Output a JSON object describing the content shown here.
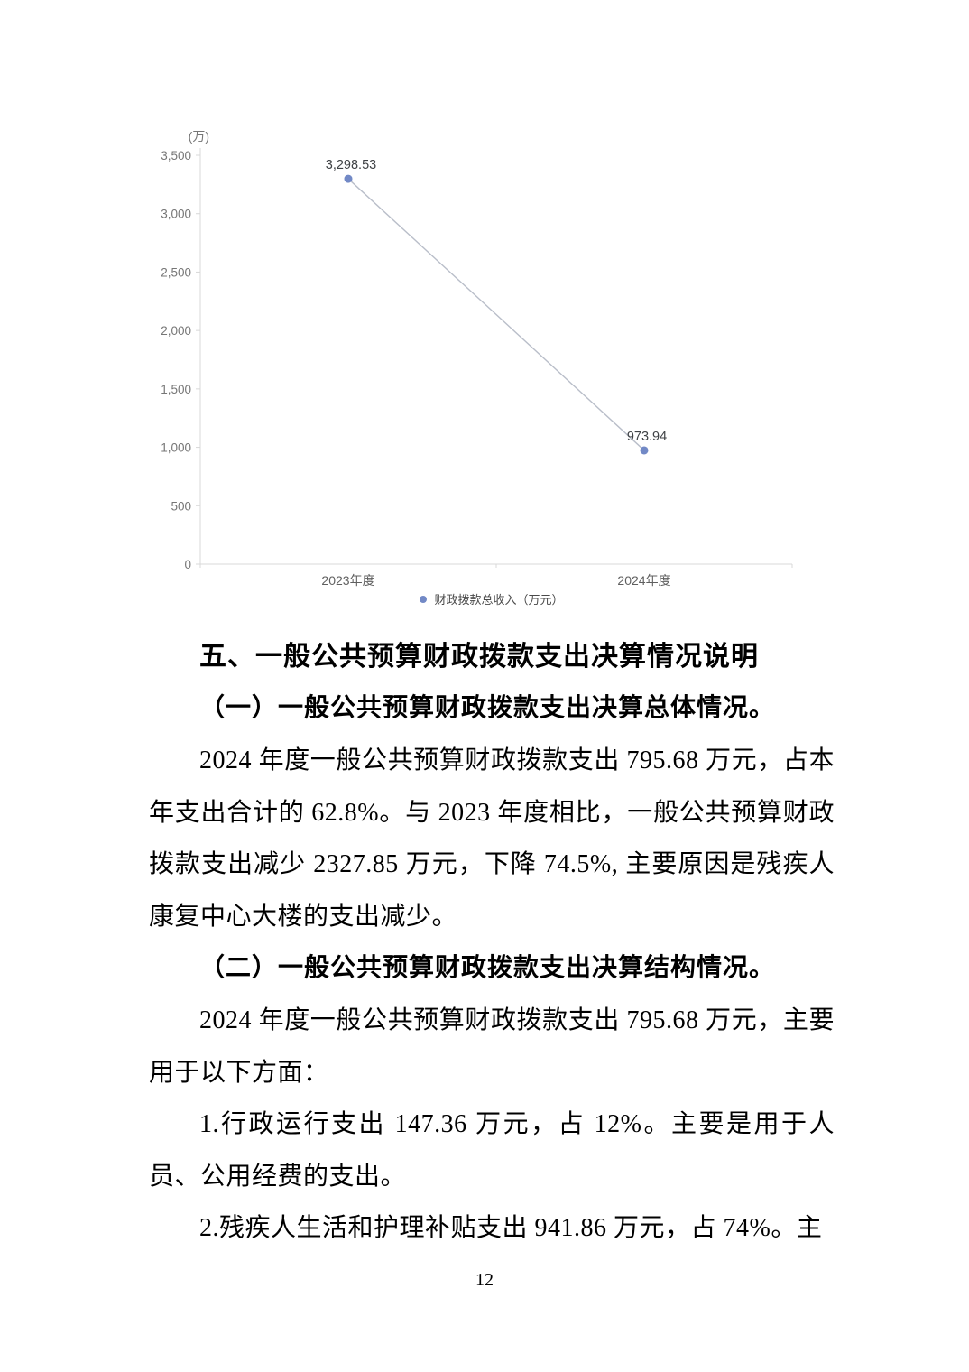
{
  "chart_data": {
    "type": "line",
    "series_name": "财政拨款总收入（万元）",
    "categories": [
      "2023年度",
      "2024年度"
    ],
    "values": [
      3298.53,
      973.94
    ],
    "data_labels": [
      "3,298.53",
      "973.94"
    ],
    "unit_label": "(万)",
    "title": "",
    "xlabel": "",
    "ylabel": "(万)",
    "ylim": [
      0,
      3500
    ],
    "yticks": [
      0,
      500,
      1000,
      1500,
      2000,
      2500,
      3000,
      3500
    ],
    "ytick_labels": [
      "0",
      "500",
      "1,000",
      "1,500",
      "2,000",
      "2,500",
      "3,000",
      "3,500"
    ],
    "grid": false,
    "legend_position": "bottom",
    "colors": {
      "marker": "#7289c6",
      "line": "#b9bec9",
      "axis": "#d8d8d8",
      "tick_label": "#767676",
      "category_label": "#5f5f5f",
      "data_label": "#3f4245",
      "legend_text": "#4a4a4a"
    }
  },
  "document": {
    "heading": "五、一般公共预算财政拨款支出决算情况说明",
    "paragraphs": [
      {
        "text": "（一）一般公共预算财政拨款支出决算总体情况。"
      },
      {
        "text": "2024 年度一般公共预算财政拨款支出 795.68 万元，占本年支出合计的 62.8%。与 2023 年度相比，一般公共预算财政拨款支出减少 2327.85 万元，下降 74.5%, 主要原因是残疾人康复中心大楼的支出减少。"
      },
      {
        "text": "（二）一般公共预算财政拨款支出决算结构情况。"
      },
      {
        "text": "2024 年度一般公共预算财政拨款支出 795.68 万元，主要用于以下方面："
      },
      {
        "text": "1.行政运行支出 147.36 万元，占 12%。主要是用于人员、公用经费的支出。"
      },
      {
        "text": "2.残疾人生活和护理补贴支出 941.86 万元，占 74%。主"
      }
    ],
    "page_number": "12"
  }
}
